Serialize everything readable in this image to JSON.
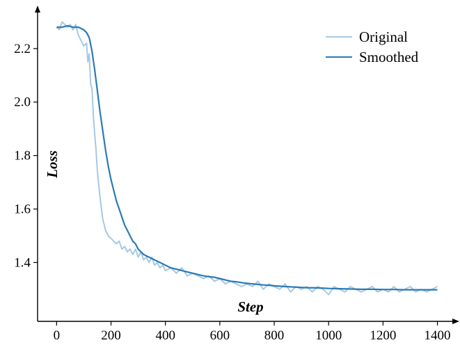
{
  "chart_data": {
    "type": "line",
    "title": "",
    "xlabel": "Step",
    "ylabel": "Loss",
    "xlim": [
      -70,
      1460
    ],
    "ylim": [
      1.18,
      2.34
    ],
    "xticks": [
      0,
      200,
      400,
      600,
      800,
      1000,
      1200,
      1400
    ],
    "yticks": [
      1.4,
      1.6,
      1.8,
      2.0,
      2.2
    ],
    "grid": false,
    "legend_position": "top-right",
    "series": [
      {
        "name": "Original",
        "color": "#a6c8e3",
        "points": [
          [
            0,
            2.28
          ],
          [
            10,
            2.27
          ],
          [
            20,
            2.3
          ],
          [
            30,
            2.29
          ],
          [
            40,
            2.28
          ],
          [
            50,
            2.29
          ],
          [
            60,
            2.27
          ],
          [
            70,
            2.29
          ],
          [
            80,
            2.25
          ],
          [
            90,
            2.23
          ],
          [
            100,
            2.21
          ],
          [
            110,
            2.22
          ],
          [
            115,
            2.15
          ],
          [
            120,
            2.18
          ],
          [
            125,
            2.07
          ],
          [
            130,
            2.05
          ],
          [
            135,
            1.95
          ],
          [
            140,
            1.88
          ],
          [
            145,
            1.82
          ],
          [
            150,
            1.74
          ],
          [
            155,
            1.69
          ],
          [
            160,
            1.64
          ],
          [
            165,
            1.6
          ],
          [
            170,
            1.56
          ],
          [
            175,
            1.54
          ],
          [
            180,
            1.52
          ],
          [
            190,
            1.5
          ],
          [
            200,
            1.49
          ],
          [
            210,
            1.48
          ],
          [
            220,
            1.47
          ],
          [
            230,
            1.48
          ],
          [
            240,
            1.45
          ],
          [
            250,
            1.46
          ],
          [
            260,
            1.44
          ],
          [
            270,
            1.45
          ],
          [
            280,
            1.43
          ],
          [
            290,
            1.45
          ],
          [
            300,
            1.42
          ],
          [
            310,
            1.44
          ],
          [
            320,
            1.41
          ],
          [
            330,
            1.42
          ],
          [
            340,
            1.4
          ],
          [
            350,
            1.42
          ],
          [
            360,
            1.39
          ],
          [
            370,
            1.4
          ],
          [
            380,
            1.38
          ],
          [
            390,
            1.39
          ],
          [
            400,
            1.37
          ],
          [
            420,
            1.38
          ],
          [
            440,
            1.36
          ],
          [
            460,
            1.38
          ],
          [
            480,
            1.35
          ],
          [
            500,
            1.36
          ],
          [
            520,
            1.35
          ],
          [
            540,
            1.34
          ],
          [
            560,
            1.35
          ],
          [
            580,
            1.33
          ],
          [
            600,
            1.34
          ],
          [
            620,
            1.32
          ],
          [
            640,
            1.33
          ],
          [
            660,
            1.32
          ],
          [
            680,
            1.31
          ],
          [
            700,
            1.32
          ],
          [
            720,
            1.31
          ],
          [
            740,
            1.33
          ],
          [
            760,
            1.3
          ],
          [
            780,
            1.32
          ],
          [
            800,
            1.31
          ],
          [
            820,
            1.3
          ],
          [
            840,
            1.32
          ],
          [
            860,
            1.29
          ],
          [
            880,
            1.31
          ],
          [
            900,
            1.3
          ],
          [
            920,
            1.31
          ],
          [
            940,
            1.29
          ],
          [
            960,
            1.31
          ],
          [
            980,
            1.3
          ],
          [
            1000,
            1.28
          ],
          [
            1020,
            1.31
          ],
          [
            1040,
            1.3
          ],
          [
            1060,
            1.29
          ],
          [
            1080,
            1.31
          ],
          [
            1100,
            1.3
          ],
          [
            1120,
            1.29
          ],
          [
            1140,
            1.3
          ],
          [
            1160,
            1.31
          ],
          [
            1180,
            1.29
          ],
          [
            1200,
            1.3
          ],
          [
            1220,
            1.29
          ],
          [
            1240,
            1.31
          ],
          [
            1260,
            1.29
          ],
          [
            1280,
            1.3
          ],
          [
            1300,
            1.31
          ],
          [
            1320,
            1.29
          ],
          [
            1340,
            1.3
          ],
          [
            1360,
            1.29
          ],
          [
            1380,
            1.3
          ],
          [
            1400,
            1.31
          ]
        ]
      },
      {
        "name": "Smoothed",
        "color": "#2a7ab6",
        "points": [
          [
            0,
            2.28
          ],
          [
            20,
            2.28
          ],
          [
            40,
            2.285
          ],
          [
            60,
            2.28
          ],
          [
            80,
            2.28
          ],
          [
            100,
            2.27
          ],
          [
            110,
            2.26
          ],
          [
            120,
            2.24
          ],
          [
            130,
            2.19
          ],
          [
            140,
            2.12
          ],
          [
            150,
            2.04
          ],
          [
            160,
            1.96
          ],
          [
            170,
            1.89
          ],
          [
            180,
            1.82
          ],
          [
            190,
            1.76
          ],
          [
            200,
            1.71
          ],
          [
            210,
            1.67
          ],
          [
            220,
            1.63
          ],
          [
            230,
            1.6
          ],
          [
            240,
            1.57
          ],
          [
            250,
            1.54
          ],
          [
            260,
            1.52
          ],
          [
            270,
            1.5
          ],
          [
            280,
            1.48
          ],
          [
            290,
            1.47
          ],
          [
            300,
            1.45
          ],
          [
            320,
            1.43
          ],
          [
            340,
            1.42
          ],
          [
            360,
            1.41
          ],
          [
            380,
            1.4
          ],
          [
            400,
            1.39
          ],
          [
            420,
            1.38
          ],
          [
            440,
            1.375
          ],
          [
            460,
            1.37
          ],
          [
            480,
            1.365
          ],
          [
            500,
            1.36
          ],
          [
            520,
            1.355
          ],
          [
            540,
            1.35
          ],
          [
            560,
            1.347
          ],
          [
            580,
            1.345
          ],
          [
            600,
            1.34
          ],
          [
            620,
            1.335
          ],
          [
            640,
            1.33
          ],
          [
            660,
            1.328
          ],
          [
            680,
            1.325
          ],
          [
            700,
            1.322
          ],
          [
            720,
            1.32
          ],
          [
            740,
            1.318
          ],
          [
            760,
            1.316
          ],
          [
            780,
            1.315
          ],
          [
            800,
            1.313
          ],
          [
            840,
            1.31
          ],
          [
            880,
            1.308
          ],
          [
            920,
            1.306
          ],
          [
            960,
            1.305
          ],
          [
            1000,
            1.303
          ],
          [
            1040,
            1.302
          ],
          [
            1080,
            1.301
          ],
          [
            1120,
            1.3
          ],
          [
            1160,
            1.3
          ],
          [
            1200,
            1.299
          ],
          [
            1240,
            1.299
          ],
          [
            1280,
            1.298
          ],
          [
            1320,
            1.298
          ],
          [
            1360,
            1.298
          ],
          [
            1400,
            1.298
          ]
        ]
      }
    ]
  }
}
